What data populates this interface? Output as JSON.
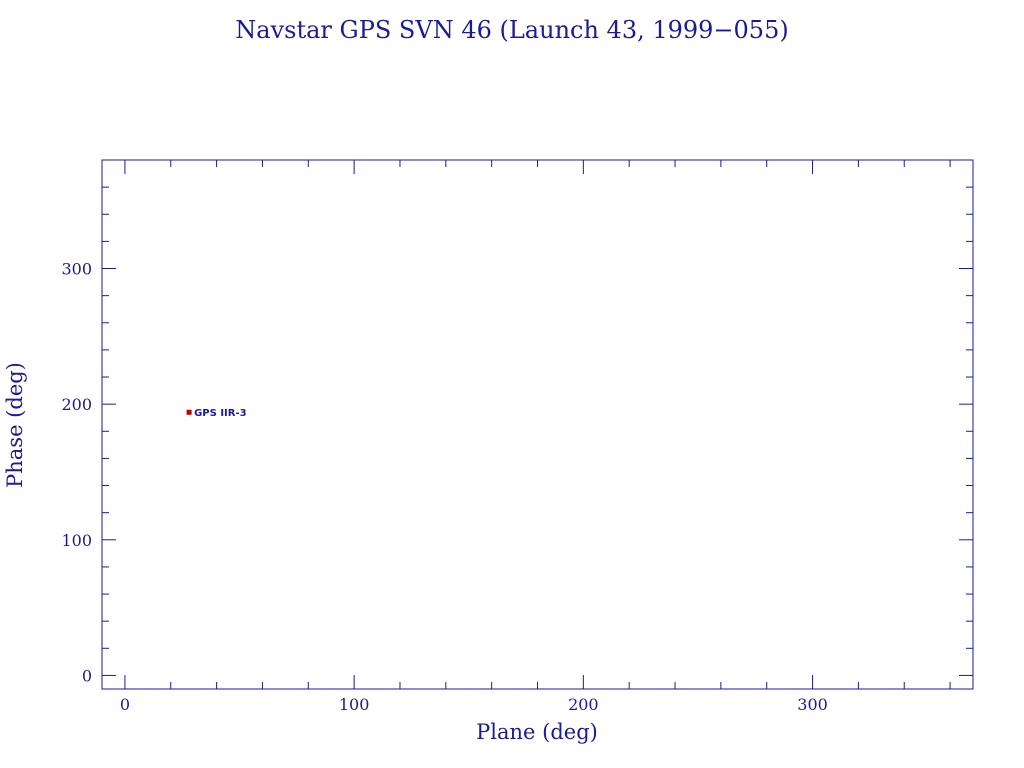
{
  "chart_data": {
    "type": "scatter",
    "title": "Navstar GPS SVN 46 (Launch 43, 1999−055)",
    "xlabel": "Plane (deg)",
    "ylabel": "Phase (deg)",
    "xlim": [
      -10,
      370
    ],
    "ylim": [
      -10,
      380
    ],
    "xticks": [
      0,
      100,
      200,
      300
    ],
    "yticks": [
      0,
      100,
      200,
      300
    ],
    "grid": false,
    "colors": {
      "axis": "#1a1a9c",
      "text": "#1a1a9c",
      "point": "#c00000"
    },
    "points": [
      {
        "x": 28,
        "y": 194,
        "label": "GPS IIR-3"
      }
    ]
  }
}
